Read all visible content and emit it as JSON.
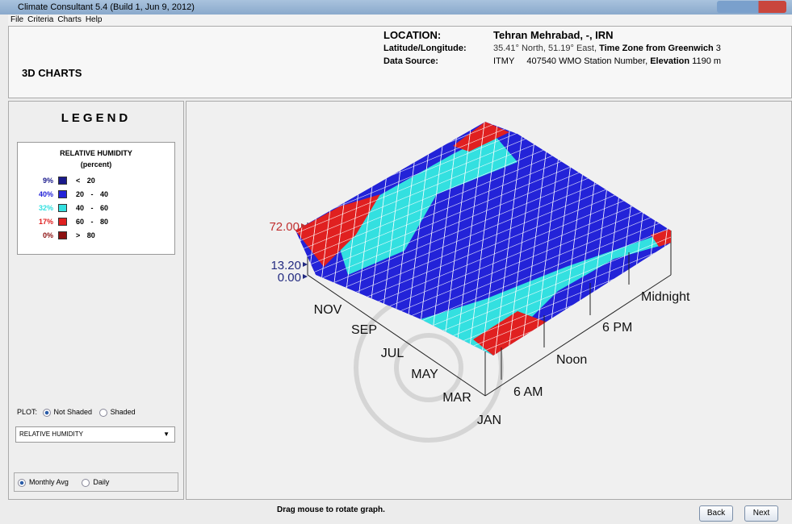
{
  "window": {
    "title": "Climate Consultant 5.4 (Build 1, Jun 9, 2012)"
  },
  "menu": [
    "File",
    "Criteria",
    "Charts",
    "Help"
  ],
  "header": {
    "title": "3D CHARTS",
    "location_label": "LOCATION:",
    "location": "Tehran Mehrabad, -, IRN",
    "latlong_label": "Latitude/Longitude:",
    "latlong": "35.41° North, 51.19° East,",
    "tz_label": "Time Zone from Greenwich",
    "tz": "3",
    "source_label": "Data Source:",
    "source": "ITMY",
    "station": "407540 WMO Station Number,",
    "elevation_label": "Elevation",
    "elevation": "1190 m"
  },
  "legend": {
    "title": "LEGEND",
    "variable": "RELATIVE HUMIDITY",
    "unit": "(percent)",
    "rows": [
      {
        "percent": "9%",
        "range": "< 20",
        "color": "#1a1a8c"
      },
      {
        "percent": "40%",
        "range": "20 - 40",
        "color": "#2323d8"
      },
      {
        "percent": "32%",
        "range": "40 - 60",
        "color": "#33e0e0"
      },
      {
        "percent": "17%",
        "range": "60 - 80",
        "color": "#e02020"
      },
      {
        "percent": "0%",
        "range": "> 80",
        "color": "#8c1010"
      }
    ]
  },
  "controls": {
    "plot_label": "PLOT:",
    "plot_options": [
      "Not Shaded",
      "Shaded"
    ],
    "dropdown": "RELATIVE HUMIDITY",
    "period_options": [
      "Monthly Avg",
      "Daily"
    ]
  },
  "chart": {
    "z_labels": [
      "72.00",
      "13.20",
      "0.00"
    ],
    "months": [
      "JAN",
      "MAR",
      "MAY",
      "JUL",
      "SEP",
      "NOV"
    ],
    "hours": [
      "6 AM",
      "Noon",
      "6 PM",
      "Midnight"
    ]
  },
  "footer": {
    "hint": "Drag mouse to rotate graph.",
    "buttons": [
      "Back",
      "Next"
    ]
  }
}
